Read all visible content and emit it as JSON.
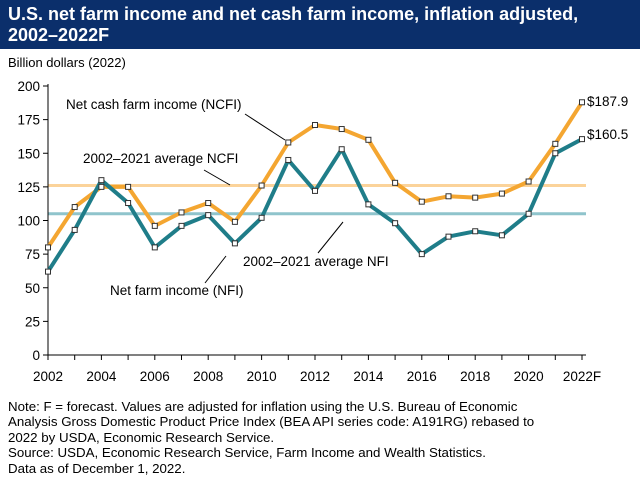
{
  "title": "U.S. net farm income and net cash farm income, inflation adjusted, 2002–2022F",
  "notes": [
    "Note: F = forecast. Values are adjusted for inflation using the U.S. Bureau of Economic",
    "Analysis Gross Domestic Product Price Index (BEA API series code: A191RG) rebased to",
    "2022 by USDA, Economic Research Service.",
    "Source: USDA, Economic Research Service, Farm Income and Wealth Statistics.",
    "Data as of December 1, 2022."
  ],
  "colors": {
    "title_bg": "#0b2f6b",
    "ncfi": "#f4a631",
    "nfi": "#1f7d89",
    "ncfi_avg": "#fbd39a",
    "nfi_avg": "#8fc4cc"
  },
  "chart_data": {
    "type": "line",
    "ylabel": "Billion dollars (2022)",
    "xlabel": "",
    "x": [
      2002,
      2003,
      2004,
      2005,
      2006,
      2007,
      2008,
      2009,
      2010,
      2011,
      2012,
      2013,
      2014,
      2015,
      2016,
      2017,
      2018,
      2019,
      2020,
      2021,
      2022
    ],
    "x_tick_labels": [
      "2002",
      "2004",
      "2006",
      "2008",
      "2010",
      "2012",
      "2014",
      "2016",
      "2018",
      "2020",
      "2022F"
    ],
    "x_tick_values": [
      2002,
      2004,
      2006,
      2008,
      2010,
      2012,
      2014,
      2016,
      2018,
      2020,
      2022
    ],
    "ylim": [
      0,
      200
    ],
    "y_ticks": [
      0,
      25,
      50,
      75,
      100,
      125,
      150,
      175,
      200
    ],
    "grid": false,
    "series": [
      {
        "name": "Net cash farm income (NCFI)",
        "key": "ncfi",
        "values": [
          80,
          110,
          125,
          125,
          96,
          106,
          113,
          99,
          126,
          158,
          171,
          168,
          160,
          128,
          114,
          118,
          117,
          120,
          129,
          157,
          187.9
        ]
      },
      {
        "name": "Net farm income (NFI)",
        "key": "nfi",
        "values": [
          62,
          93,
          130,
          113,
          80,
          96,
          104,
          83,
          102,
          145,
          122,
          153,
          112,
          98,
          75,
          88,
          92,
          89,
          105,
          150,
          160.5
        ]
      }
    ],
    "averages": [
      {
        "name": "2002–2021 average NCFI",
        "key": "ncfi_avg",
        "value": 126
      },
      {
        "name": "2002–2021 average NFI",
        "key": "nfi_avg",
        "value": 105
      }
    ],
    "end_labels": [
      "$187.9",
      "$160.5"
    ]
  }
}
